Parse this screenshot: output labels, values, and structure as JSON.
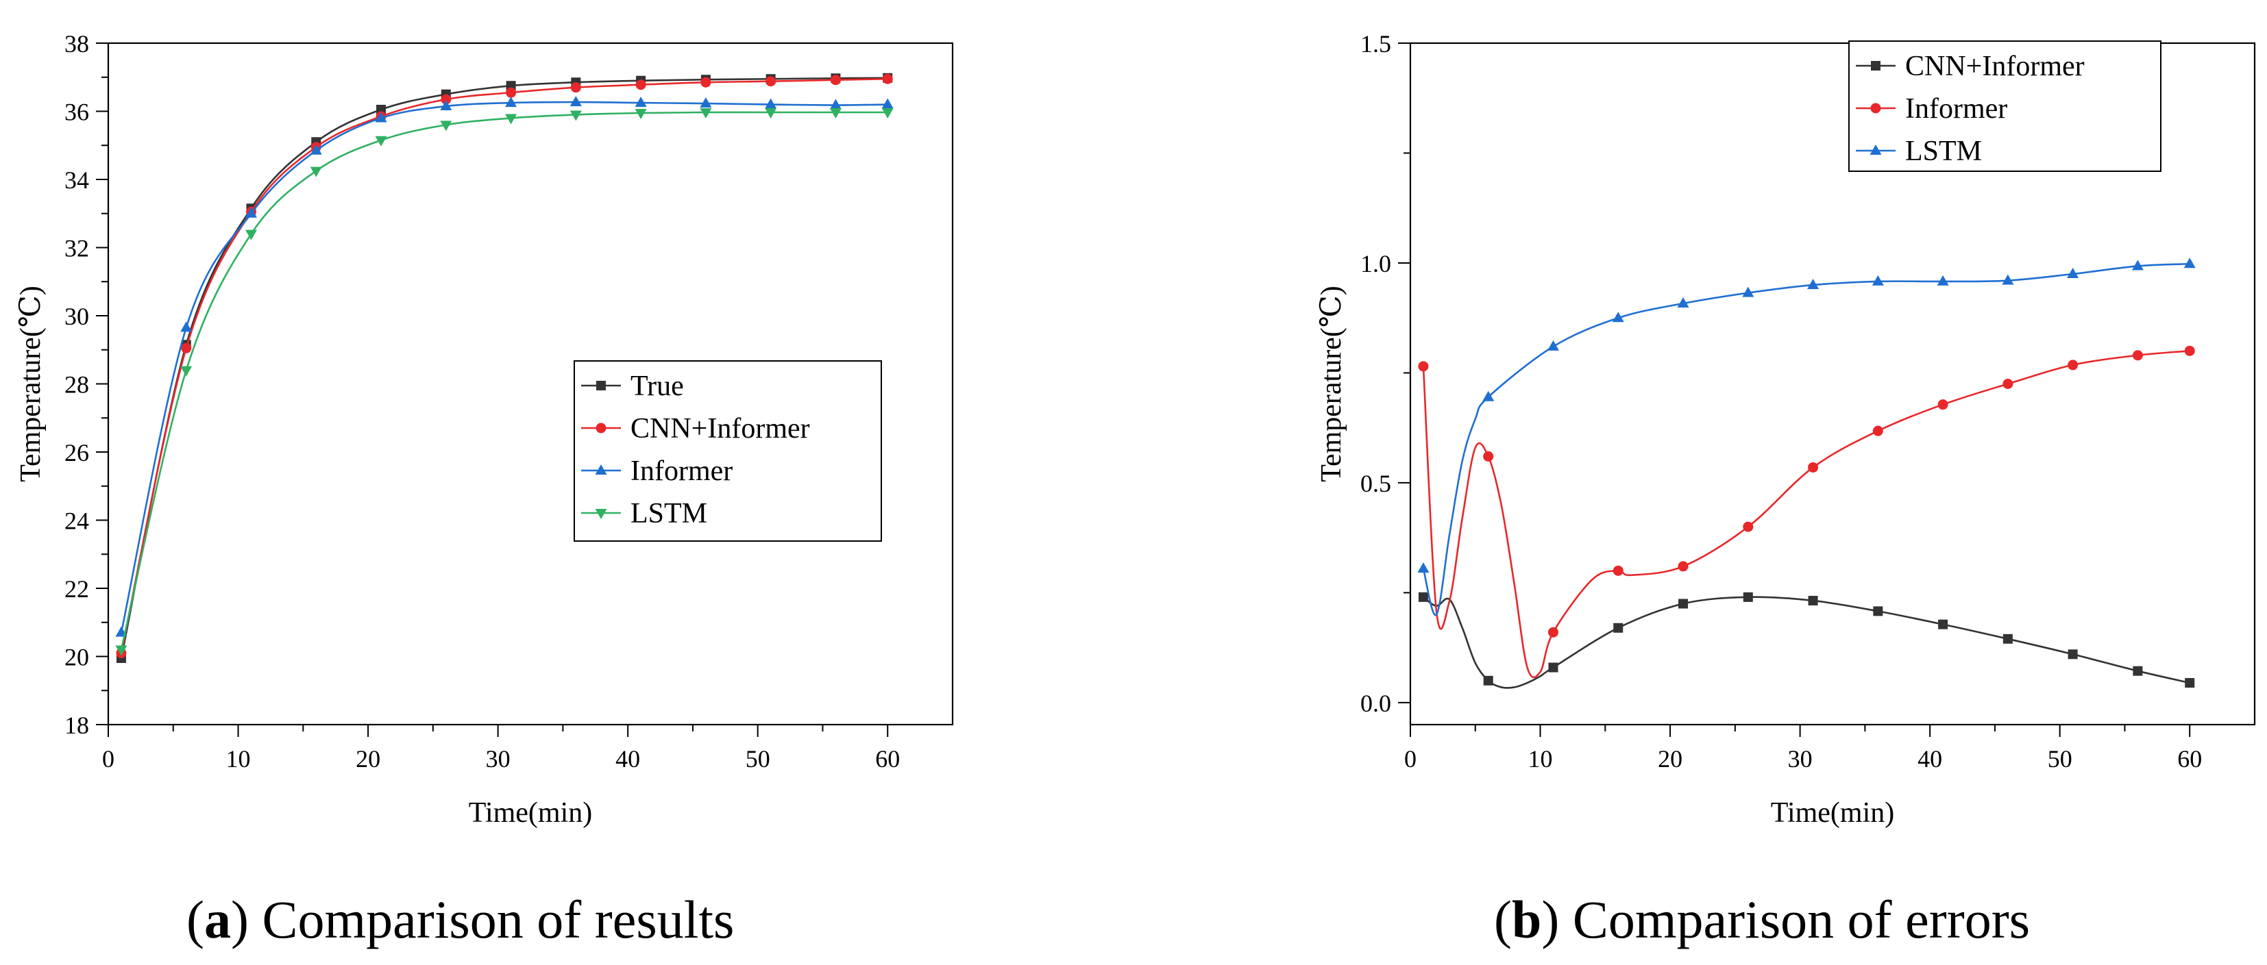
{
  "chart_data": [
    {
      "id": "a",
      "type": "line",
      "xlabel": "Time(min)",
      "ylabel": "Temperature(℃)",
      "xlim": [
        0,
        65
      ],
      "ylim": [
        18,
        38
      ],
      "xticks": [
        0,
        10,
        20,
        30,
        40,
        50,
        60
      ],
      "yticks": [
        18,
        20,
        22,
        24,
        26,
        28,
        30,
        32,
        34,
        36,
        38
      ],
      "x": [
        1,
        6,
        11,
        16,
        21,
        26,
        31,
        36,
        41,
        46,
        51,
        56,
        60
      ],
      "legend": "center-right",
      "series": [
        {
          "name": "True",
          "color": "#333333",
          "marker": "square",
          "values": [
            19.95,
            29.15,
            33.15,
            35.1,
            36.05,
            36.5,
            36.75,
            36.85,
            36.9,
            36.93,
            36.95,
            36.97,
            36.98
          ]
        },
        {
          "name": "CNN+Informer",
          "color": "#e8272a",
          "marker": "circle",
          "values": [
            20.1,
            29.05,
            33.05,
            34.95,
            35.85,
            36.35,
            36.55,
            36.7,
            36.78,
            36.85,
            36.88,
            36.92,
            36.95
          ]
        },
        {
          "name": "Informer",
          "color": "#1f6fd1",
          "marker": "triangle-up",
          "values": [
            20.7,
            29.65,
            33.0,
            34.85,
            35.8,
            36.15,
            36.25,
            36.27,
            36.25,
            36.23,
            36.2,
            36.18,
            36.2
          ]
        },
        {
          "name": "LSTM",
          "color": "#2fb162",
          "marker": "triangle-down",
          "values": [
            20.2,
            28.4,
            32.4,
            34.25,
            35.15,
            35.6,
            35.8,
            35.9,
            35.95,
            35.97,
            35.97,
            35.97,
            35.97
          ]
        }
      ]
    },
    {
      "id": "b",
      "type": "line",
      "xlabel": "Time(min)",
      "ylabel": "Temperature(℃)",
      "xlim": [
        0,
        65
      ],
      "ylim": [
        -0.05,
        1.5
      ],
      "xticks": [
        0,
        10,
        20,
        30,
        40,
        50,
        60
      ],
      "yticks": [
        0.0,
        0.5,
        1.0,
        1.5
      ],
      "ytick_labels": [
        "0.0",
        "0.5",
        "1.0",
        "1.5"
      ],
      "legend": "top-right",
      "series": [
        {
          "name": "CNN+Informer",
          "color": "#333333",
          "marker": "square",
          "x": [
            1,
            2,
            3,
            4,
            5,
            6,
            7,
            8,
            9,
            10,
            11,
            16,
            21,
            26,
            31,
            36,
            41,
            46,
            51,
            56,
            60
          ],
          "values": [
            0.24,
            0.22,
            0.235,
            0.17,
            0.09,
            0.05,
            0.035,
            0.035,
            0.045,
            0.06,
            0.08,
            0.17,
            0.225,
            0.24,
            0.232,
            0.208,
            0.178,
            0.145,
            0.11,
            0.072,
            0.045
          ],
          "marker_x": [
            1,
            6,
            11,
            16,
            21,
            26,
            31,
            36,
            41,
            46,
            51,
            56,
            60
          ]
        },
        {
          "name": "Informer",
          "color": "#e8272a",
          "marker": "circle",
          "x": [
            1,
            2,
            3,
            4,
            5,
            6,
            7,
            8,
            9,
            10,
            11,
            14,
            16,
            17,
            21,
            26,
            31,
            36,
            41,
            46,
            51,
            56,
            60
          ],
          "values": [
            0.765,
            0.21,
            0.23,
            0.42,
            0.58,
            0.56,
            0.45,
            0.27,
            0.08,
            0.07,
            0.16,
            0.28,
            0.3,
            0.29,
            0.31,
            0.4,
            0.535,
            0.618,
            0.678,
            0.725,
            0.768,
            0.79,
            0.8
          ],
          "marker_x": [
            1,
            6,
            11,
            16,
            21,
            26,
            31,
            36,
            41,
            46,
            51,
            56,
            60
          ]
        },
        {
          "name": "LSTM",
          "color": "#1f6fd1",
          "marker": "triangle-up",
          "x": [
            1,
            2,
            3,
            4,
            5,
            6,
            11,
            16,
            21,
            26,
            31,
            36,
            41,
            46,
            51,
            56,
            60
          ],
          "values": [
            0.305,
            0.2,
            0.38,
            0.55,
            0.645,
            0.695,
            0.81,
            0.875,
            0.908,
            0.932,
            0.95,
            0.958,
            0.958,
            0.96,
            0.975,
            0.993,
            0.998
          ],
          "marker_x": [
            1,
            6,
            11,
            16,
            21,
            26,
            31,
            36,
            41,
            46,
            51,
            56,
            60
          ]
        }
      ]
    }
  ],
  "captions": {
    "a_letter": "a",
    "a_text": " Comparison of results",
    "b_letter": "b",
    "b_text": " Comparison of errors"
  }
}
